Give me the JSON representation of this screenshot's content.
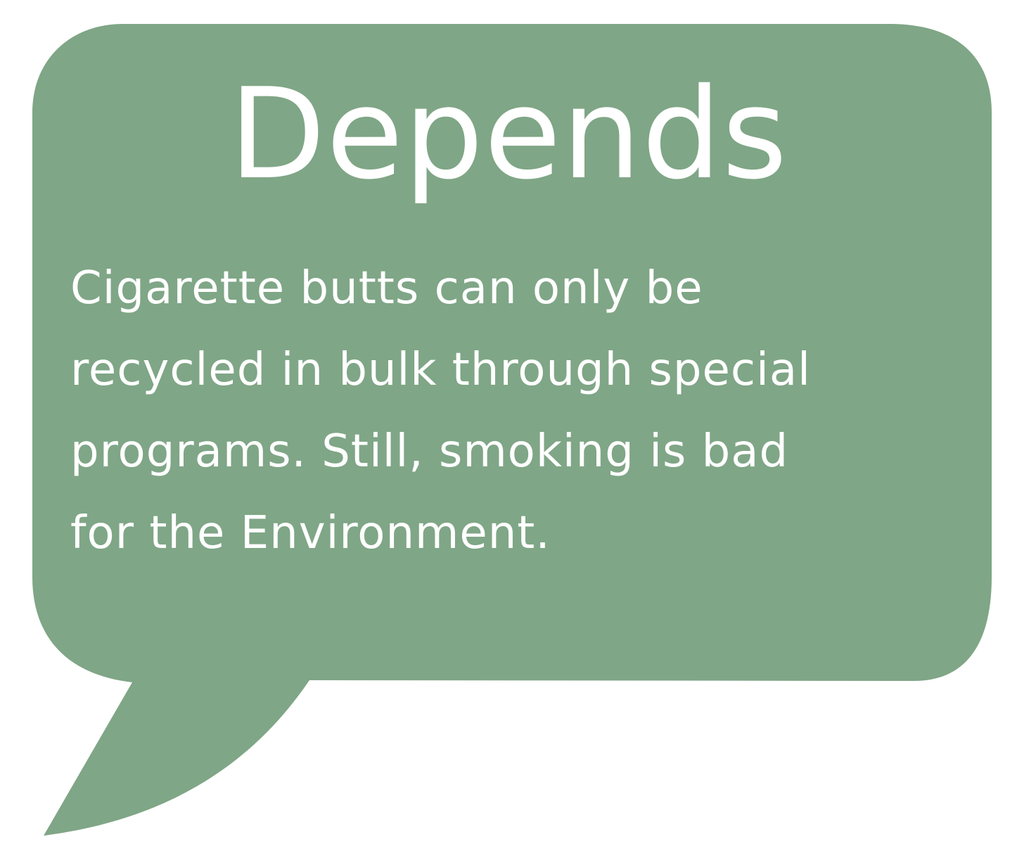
{
  "bubble": {
    "fill_color": "#7fa686",
    "text_color": "#ffffff",
    "background_color": "#ffffff",
    "icon": "speech-bubble-icon"
  },
  "heading": "Depends",
  "body_lines": [
    "Cigarette butts can only be",
    "recycled in bulk through special",
    "programs. Still, smoking is bad",
    "for the Environment."
  ]
}
